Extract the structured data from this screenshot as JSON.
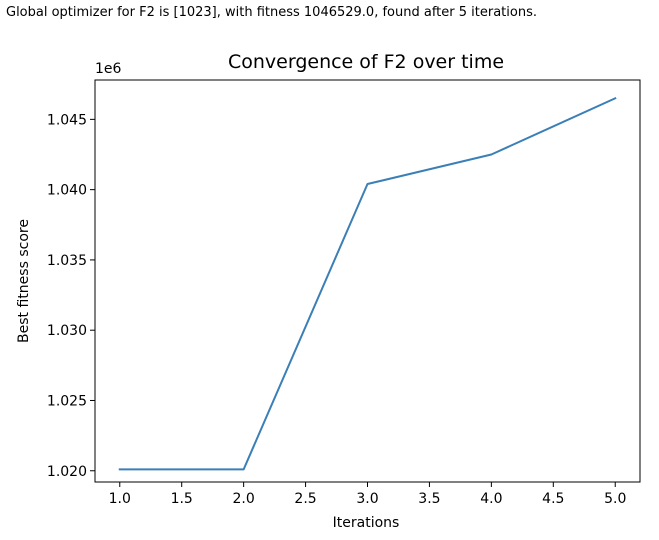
{
  "output": {
    "text": "Global optimizer for F2 is [1023], with fitness 1046529.0, found after 5 iterations."
  },
  "chart_data": {
    "type": "line",
    "title": "Convergence of F2 over time",
    "xlabel": "Iterations",
    "ylabel": "Best fitness score",
    "offset_label": "1e6",
    "xlim": [
      0.8,
      5.2
    ],
    "ylim": [
      1.0192,
      1.0478
    ],
    "x_ticks": [
      1.0,
      1.5,
      2.0,
      2.5,
      3.0,
      3.5,
      4.0,
      4.5,
      5.0
    ],
    "x_tick_labels": [
      "1.0",
      "1.5",
      "2.0",
      "2.5",
      "3.0",
      "3.5",
      "4.0",
      "4.5",
      "5.0"
    ],
    "y_ticks": [
      1.02,
      1.025,
      1.03,
      1.035,
      1.04,
      1.045
    ],
    "y_tick_labels": [
      "1.020",
      "1.025",
      "1.030",
      "1.035",
      "1.040",
      "1.045"
    ],
    "grid": false,
    "series": [
      {
        "color": "#3a7fb6",
        "x": [
          1,
          2,
          3,
          4,
          5
        ],
        "y": [
          1.0201,
          1.0201,
          1.0404,
          1.0425,
          1.0465
        ]
      }
    ]
  }
}
